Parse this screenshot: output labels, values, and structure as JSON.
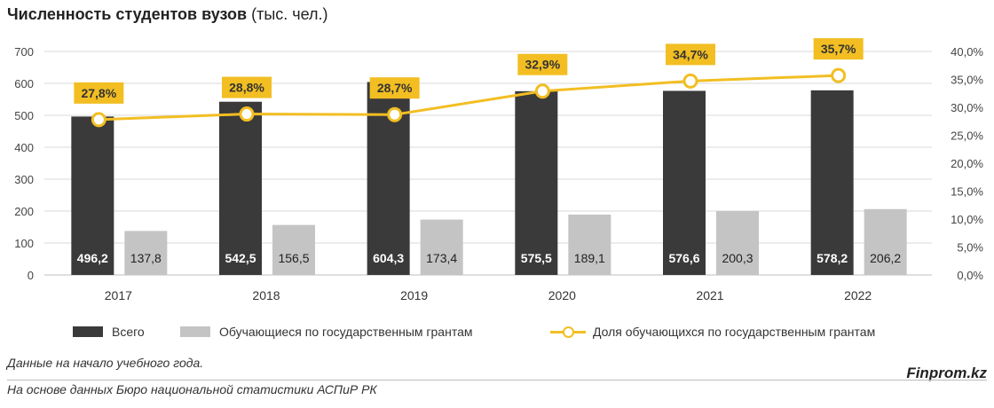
{
  "title": {
    "main": "Численность студентов вузов",
    "unit": "(тыс. чел.)"
  },
  "colors": {
    "total": "#3a3a3a",
    "grants": "#c4c4c4",
    "share": "#f2be22",
    "grid": "#d9d9d9"
  },
  "chart_data": {
    "type": "bar",
    "categories": [
      "2017",
      "2018",
      "2019",
      "2020",
      "2021",
      "2022"
    ],
    "series": [
      {
        "name": "Всего",
        "type": "bar",
        "axis": "left",
        "values": [
          496.2,
          542.5,
          604.3,
          575.5,
          576.6,
          578.2
        ],
        "labels": [
          "496,2",
          "542,5",
          "604,3",
          "575,5",
          "576,6",
          "578,2"
        ]
      },
      {
        "name": "Обучающиеся по государственным грантам",
        "type": "bar",
        "axis": "left",
        "values": [
          137.8,
          156.5,
          173.4,
          189.1,
          200.3,
          206.2
        ],
        "labels": [
          "137,8",
          "156,5",
          "173,4",
          "189,1",
          "200,3",
          "206,2"
        ]
      },
      {
        "name": "Доля обучающихся по государственным грантам",
        "type": "line",
        "axis": "right",
        "values": [
          27.8,
          28.8,
          28.7,
          32.9,
          34.7,
          35.7
        ],
        "labels": [
          "27,8%",
          "28,8%",
          "28,7%",
          "32,9%",
          "34,7%",
          "35,7%"
        ]
      }
    ],
    "yleft": {
      "lim": [
        0,
        700
      ],
      "ticks": [
        "0",
        "100",
        "200",
        "300",
        "400",
        "500",
        "600",
        "700"
      ]
    },
    "yright": {
      "lim": [
        0,
        40
      ],
      "ticks": [
        "0,0%",
        "5,0%",
        "10,0%",
        "15,0%",
        "20,0%",
        "25,0%",
        "30,0%",
        "35,0%",
        "40,0%"
      ]
    },
    "grid": true,
    "legend": "bottom"
  },
  "notes": {
    "line1": "Данные на начало учебного года.",
    "line2": "На основе данных Бюро национальной статистики АСПиР РК"
  },
  "brand": "Finprom.kz"
}
